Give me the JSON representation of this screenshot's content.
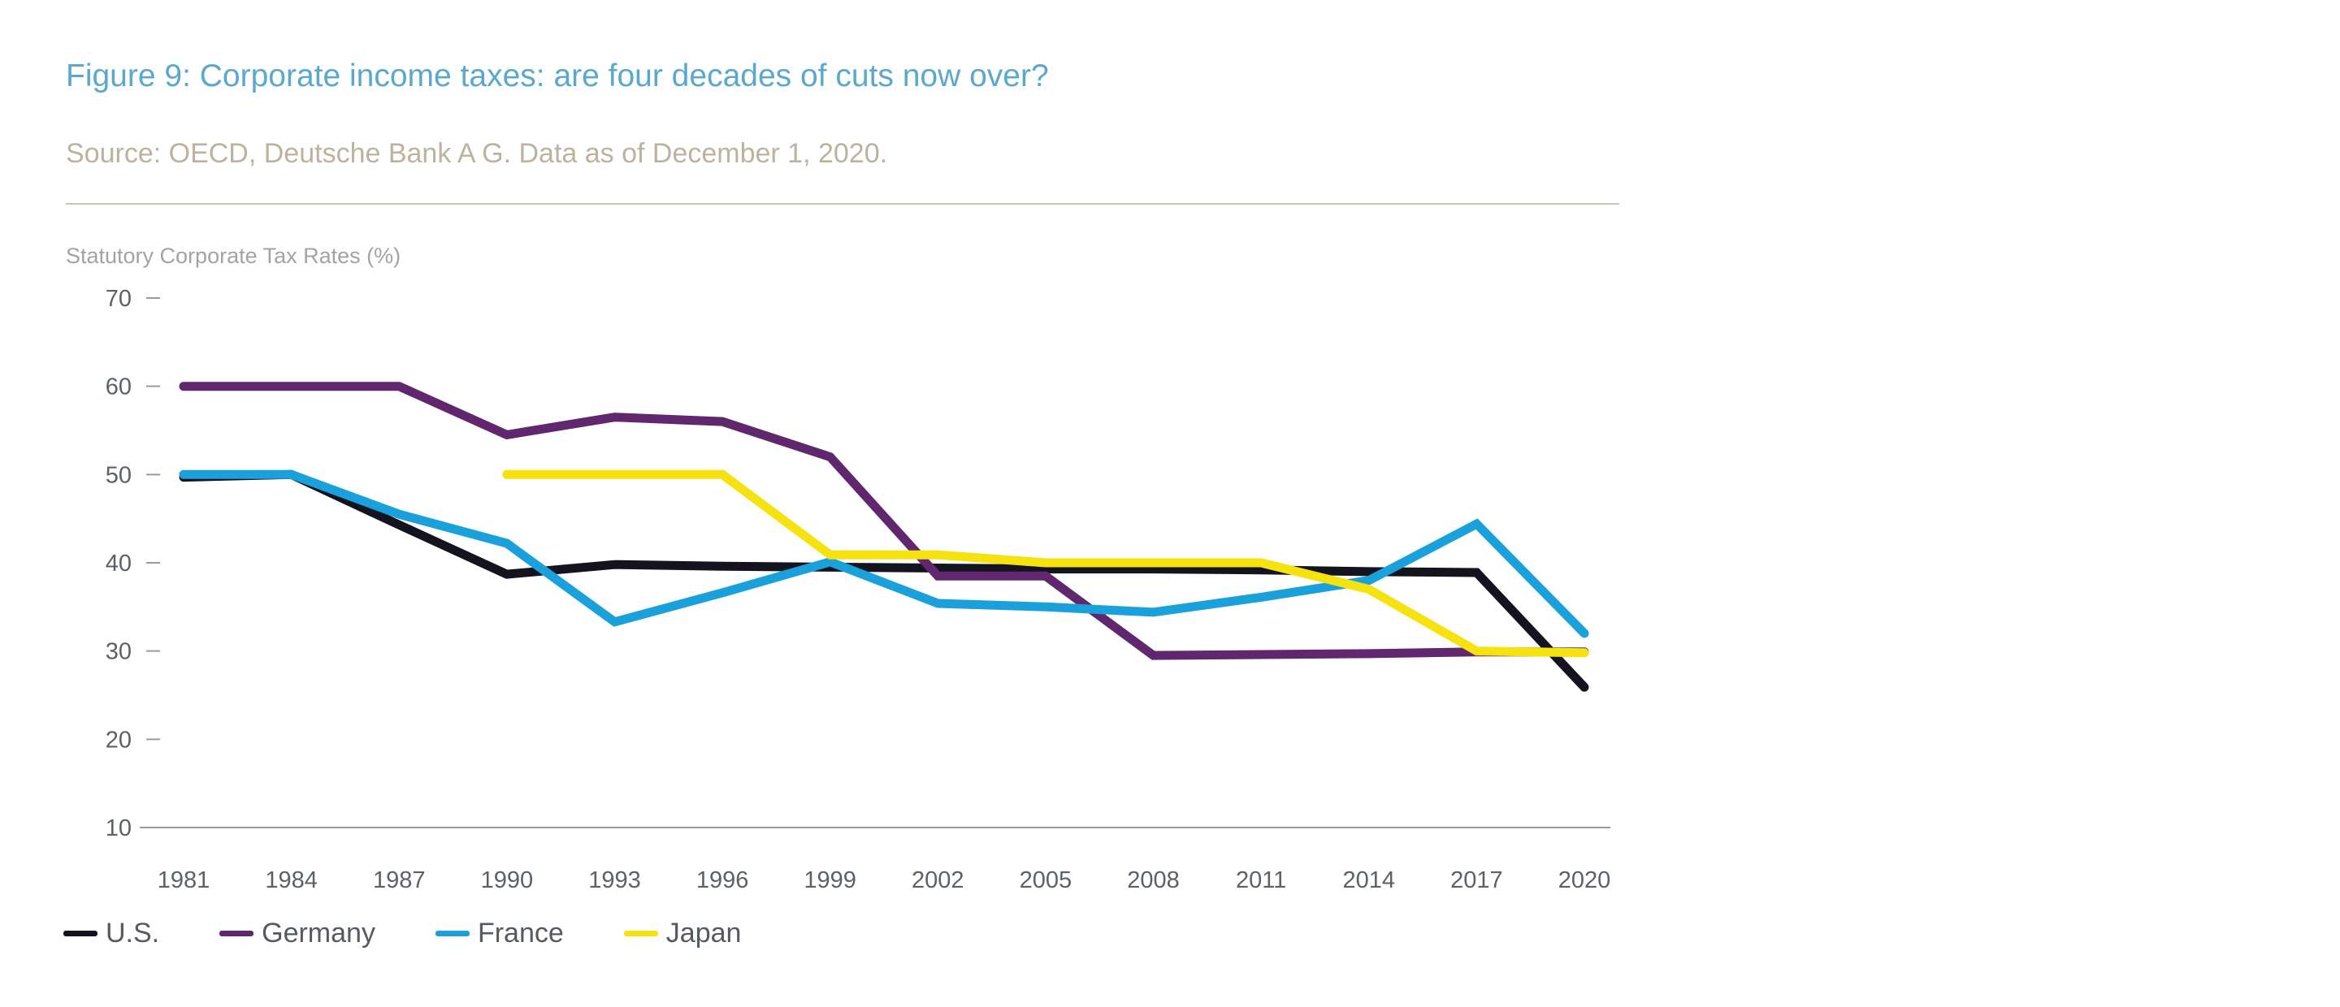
{
  "chart_data": {
    "type": "line",
    "title": "Figure 9: Corporate income taxes: are four decades of cuts now over?",
    "source": "Source: OECD, Deutsche Bank A G. Data as of December 1, 2020.",
    "ylabel": "Statutory Corporate Tax Rates (%)",
    "ylim": [
      10,
      70
    ],
    "yticks": [
      "10",
      "20",
      "30",
      "40",
      "50",
      "60",
      "70"
    ],
    "x": [
      1981,
      1984,
      1987,
      1990,
      1993,
      1996,
      1999,
      2002,
      2005,
      2008,
      2011,
      2014,
      2017,
      2020
    ],
    "x_labels": [
      "1981",
      "1984",
      "1987",
      "1990",
      "1993",
      "1996",
      "1999",
      "2002",
      "2005",
      "2008",
      "2011",
      "2014",
      "2017",
      "2020"
    ],
    "series": [
      {
        "name": "U.S.",
        "color": "#13141f",
        "values": [
          49.7,
          50,
          44.3,
          38.7,
          39.8,
          39.6,
          39.5,
          39.4,
          39.3,
          39.3,
          39.2,
          39.0,
          38.9,
          25.9
        ]
      },
      {
        "name": "Germany",
        "color": "#60266e",
        "values": [
          60,
          60,
          60,
          54.5,
          56.5,
          56,
          52,
          38.5,
          38.5,
          29.5,
          29.6,
          29.7,
          29.9,
          29.9
        ]
      },
      {
        "name": "France",
        "color": "#1aa1dc",
        "values": [
          50,
          50,
          45.5,
          42.2,
          33.3,
          36.6,
          40.1,
          35.4,
          35,
          34.4,
          36.1,
          38.0,
          44.4,
          32.0
        ]
      },
      {
        "name": "Japan",
        "color": "#f5e20e",
        "values": [
          null,
          null,
          null,
          50,
          50,
          50,
          40.9,
          40.9,
          40.0,
          40.0,
          40.0,
          37.0,
          30.0,
          29.8
        ]
      }
    ]
  }
}
